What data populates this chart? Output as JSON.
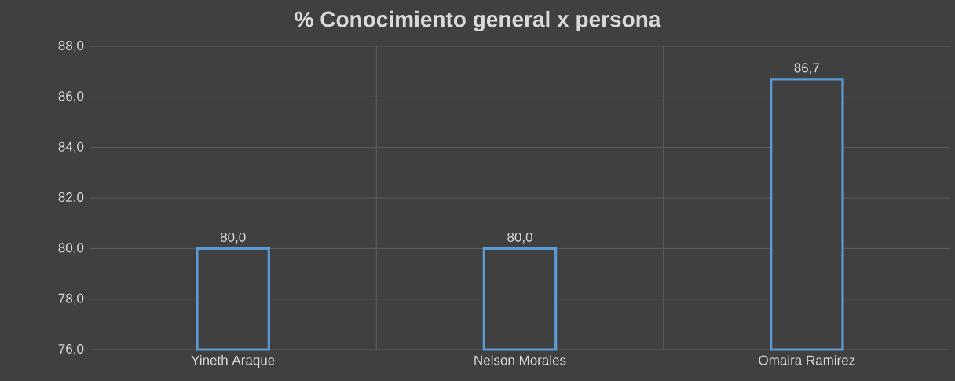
{
  "chart_data": {
    "type": "bar",
    "title": "% Conocimiento general x persona",
    "categories": [
      "Yineth Araque",
      "Nelson Morales",
      "Omaira Ramirez"
    ],
    "values": [
      80.0,
      80.0,
      86.7
    ],
    "value_labels": [
      "80,0",
      "80,0",
      "86,7"
    ],
    "color": "#5b9bd5",
    "ylim": [
      76,
      88
    ],
    "yticks": [
      {
        "value": 76,
        "label": "76,0"
      },
      {
        "value": 78,
        "label": "78,0"
      },
      {
        "value": 80,
        "label": "80,0"
      },
      {
        "value": 82,
        "label": "82,0"
      },
      {
        "value": 84,
        "label": "84,0"
      },
      {
        "value": 86,
        "label": "86,0"
      },
      {
        "value": 88,
        "label": "88,0"
      }
    ],
    "grid": true
  }
}
